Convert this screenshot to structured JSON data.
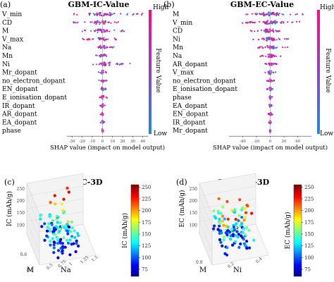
{
  "panels": {
    "a": {
      "letter": "(a)",
      "title": "GBM-IC-Value"
    },
    "b": {
      "letter": "(b)",
      "title": "GBM-EC-Value"
    },
    "c": {
      "letter": "(c)",
      "title": "GBM-IC-3D"
    },
    "d": {
      "letter": "(d)",
      "title": "GBM-EC-3D"
    }
  },
  "colorbar_labels": {
    "high": "High",
    "low": "Low",
    "feature_value": "Feature Value"
  },
  "chart_data": [
    {
      "id": "a",
      "type": "scatter",
      "subtype": "shap-beeswarm",
      "title": "GBM-IC-Value",
      "xlabel": "SHAP value (impact on model output)",
      "ylabel": "Feature Value",
      "xticks": [
        -30,
        -20,
        -10,
        0,
        10,
        20,
        30,
        40
      ],
      "xlim": [
        -35,
        45
      ],
      "features": [
        "V_min",
        "CD",
        "M",
        "V_max",
        "Na",
        "Mn",
        "Ni",
        "Mr_dopant",
        "no_electron_dopant",
        "EN_dopant",
        "E_ionisation_dopant",
        "IR_dopant",
        "AR_dopant",
        "EA_dopant",
        "phase"
      ],
      "spread": [
        [
          -32,
          40
        ],
        [
          -30,
          18
        ],
        [
          -20,
          22
        ],
        [
          -22,
          15
        ],
        [
          -12,
          12
        ],
        [
          -10,
          10
        ],
        [
          -10,
          30
        ],
        [
          -4,
          4
        ],
        [
          -4,
          5
        ],
        [
          -3,
          4
        ],
        [
          -3,
          6
        ],
        [
          -3,
          3
        ],
        [
          -2,
          2
        ],
        [
          -2,
          2
        ],
        [
          -1,
          1
        ]
      ],
      "colorbar": {
        "high": "High",
        "low": "Low",
        "label": "Feature Value",
        "colors": [
          "#3b7ddd",
          "#8a3fc8",
          "#e8157a"
        ]
      }
    },
    {
      "id": "b",
      "type": "scatter",
      "subtype": "shap-beeswarm",
      "title": "GBM-EC-Value",
      "xlabel": "SHAP value (impact on model output)",
      "ylabel": "Feature Value",
      "xticks": [
        -40,
        -20,
        0,
        20,
        40
      ],
      "xlim": [
        -60,
        60
      ],
      "features": [
        "M",
        "V_min",
        "CD",
        "Ni",
        "Mn",
        "Na",
        "AR_dopant",
        "V_max",
        "no_electron_dopant",
        "E_ionisation_dopant",
        "phase",
        "EA_dopant",
        "EN_dopant",
        "IR_dopant",
        "Mr_dopant"
      ],
      "spread": [
        [
          -40,
          50
        ],
        [
          -42,
          45
        ],
        [
          -30,
          20
        ],
        [
          -25,
          30
        ],
        [
          -20,
          25
        ],
        [
          -15,
          15
        ],
        [
          -8,
          10
        ],
        [
          -8,
          8
        ],
        [
          -5,
          6
        ],
        [
          -5,
          5
        ],
        [
          -3,
          3
        ],
        [
          -3,
          3
        ],
        [
          -3,
          3
        ],
        [
          -2,
          2
        ],
        [
          -2,
          2
        ]
      ],
      "colorbar": {
        "high": "High",
        "low": "Low",
        "label": "Feature Value",
        "colors": [
          "#3b7ddd",
          "#8a3fc8",
          "#e8157a"
        ]
      }
    },
    {
      "id": "c",
      "type": "scatter",
      "subtype": "3d-scatter",
      "title": "GBM-IC-3D",
      "axes": {
        "z": "IC (mAh/g)",
        "x": "Na",
        "y": "M"
      },
      "z_ticks": [
        100,
        150,
        200,
        250
      ],
      "x_ticks": [
        0.5,
        0.75,
        1.0,
        1.25,
        1.5
      ],
      "y_ticks": [
        0.6,
        0.8
      ],
      "colorbar": {
        "label": "IC (mAh/g)",
        "ticks": [
          75,
          100,
          125,
          150,
          175,
          200,
          225,
          250
        ],
        "range": [
          60,
          255
        ]
      }
    },
    {
      "id": "d",
      "type": "scatter",
      "subtype": "3d-scatter",
      "title": "GBM-EC-3D",
      "axes": {
        "z": "EC (mAh/g)",
        "x": "Ni",
        "y": "M"
      },
      "z_ticks": [
        100,
        150,
        200,
        250
      ],
      "x_ticks": [
        0.2,
        0.4
      ],
      "y_ticks": [
        0.8
      ],
      "colorbar": {
        "label": "EC (mAh/g)",
        "ticks": [
          75,
          100,
          125,
          150,
          175,
          200,
          225,
          250
        ],
        "range": [
          60,
          255
        ]
      }
    }
  ]
}
